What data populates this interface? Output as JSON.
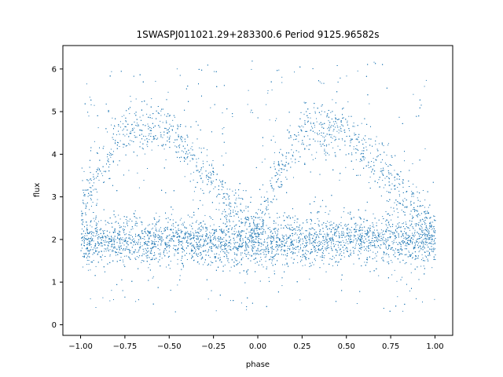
{
  "chart_data": {
    "type": "scatter",
    "title": "1SWASPJ011021.29+283300.6 Period 9125.96582s",
    "xlabel": "phase",
    "ylabel": "flux",
    "xlim": [
      -1.1,
      1.1
    ],
    "ylim": [
      -0.25,
      6.55
    ],
    "xticks": [
      -1.0,
      -0.75,
      -0.5,
      -0.25,
      0.0,
      0.25,
      0.5,
      0.75,
      1.0
    ],
    "xtick_labels": [
      "−1.00",
      "−0.75",
      "−0.50",
      "−0.25",
      "0.00",
      "0.25",
      "0.50",
      "0.75",
      "1.00"
    ],
    "yticks": [
      0,
      1,
      2,
      3,
      4,
      5,
      6
    ],
    "ytick_labels": [
      "0",
      "1",
      "2",
      "3",
      "4",
      "5",
      "6"
    ],
    "grid": false,
    "marker_color": "#1f77b4",
    "series": [
      {
        "x": [
          -1.0,
          -0.9,
          -0.8,
          -0.7,
          -0.6,
          -0.5,
          -0.4,
          -0.3,
          -0.2,
          -0.1,
          0.0,
          0.1,
          0.2,
          0.3,
          0.4,
          0.5,
          0.6,
          0.7,
          0.8,
          0.9,
          1.0
        ],
        "baseline_flux": [
          2.0,
          2.0,
          2.0,
          2.0,
          2.0,
          2.0,
          2.0,
          1.95,
          1.9,
          1.9,
          1.9,
          1.95,
          2.0,
          2.0,
          2.0,
          2.0,
          2.0,
          2.0,
          2.0,
          2.0,
          2.0
        ],
        "upper_branch_flux": [
          2.8,
          3.6,
          4.3,
          4.6,
          4.6,
          4.5,
          4.1,
          3.6,
          3.1,
          2.6,
          2.2,
          3.5,
          4.3,
          4.6,
          4.6,
          4.5,
          4.1,
          3.6,
          3.1,
          2.7,
          2.3
        ]
      }
    ]
  }
}
